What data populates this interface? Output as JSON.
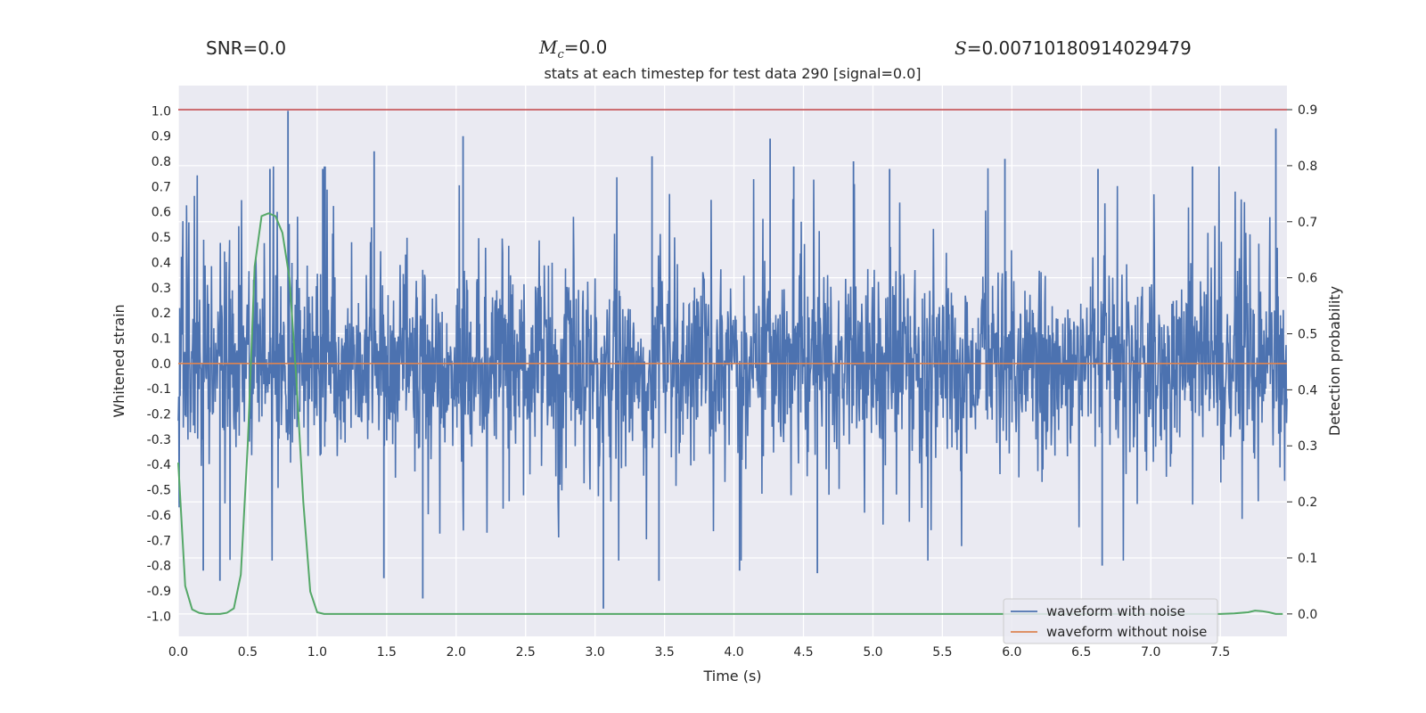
{
  "header": {
    "snr_label": "SNR=0.0",
    "mc_symbol": "M",
    "mc_sub": "c",
    "mc_value": "=0.0",
    "s_symbol": "S",
    "s_value": "=0.00710180914029479"
  },
  "chart_data": {
    "type": "line",
    "title": "stats at each timestep for test data 290 [signal=0.0]",
    "xlabel": "Time (s)",
    "ylabel": "Whitened strain",
    "y2label": "Detection probability",
    "xlim": [
      0.0,
      7.98
    ],
    "ylim": [
      -1.08,
      1.1
    ],
    "y2lim": [
      -0.04,
      0.943
    ],
    "x_ticks": [
      "0.0",
      "0.5",
      "1.0",
      "1.5",
      "2.0",
      "2.5",
      "3.0",
      "3.5",
      "4.0",
      "4.5",
      "5.0",
      "5.5",
      "6.0",
      "6.5",
      "7.0",
      "7.5"
    ],
    "y_ticks": [
      "-1.0",
      "-0.9",
      "-0.8",
      "-0.7",
      "-0.6",
      "-0.5",
      "-0.4",
      "-0.3",
      "-0.2",
      "-0.1",
      "0.0",
      "0.1",
      "0.2",
      "0.3",
      "0.4",
      "0.5",
      "0.6",
      "0.7",
      "0.8",
      "0.9",
      "1.0"
    ],
    "y2_ticks": [
      "0.0",
      "0.1",
      "0.2",
      "0.3",
      "0.4",
      "0.5",
      "0.6",
      "0.7",
      "0.8",
      "0.9"
    ],
    "threshold": {
      "axis": "right",
      "value": 0.9,
      "color": "#c44e52"
    },
    "noise_seed": 290,
    "noise_peaks": [
      {
        "x": 0.79,
        "y": 1.0
      },
      {
        "x": 0.66,
        "y": 0.77
      },
      {
        "x": 1.04,
        "y": 0.77
      },
      {
        "x": 1.41,
        "y": 0.84
      },
      {
        "x": 2.05,
        "y": 0.9
      },
      {
        "x": 3.41,
        "y": 0.82
      },
      {
        "x": 4.26,
        "y": 0.89
      },
      {
        "x": 4.43,
        "y": 0.78
      },
      {
        "x": 4.86,
        "y": 0.8
      },
      {
        "x": 5.12,
        "y": 0.77
      },
      {
        "x": 5.95,
        "y": 0.81
      },
      {
        "x": 6.62,
        "y": 0.77
      },
      {
        "x": 7.3,
        "y": 0.78
      },
      {
        "x": 7.9,
        "y": 0.93
      },
      {
        "x": 0.18,
        "y": -0.82
      },
      {
        "x": 0.3,
        "y": -0.86
      },
      {
        "x": 1.48,
        "y": -0.85
      },
      {
        "x": 1.76,
        "y": -0.93
      },
      {
        "x": 3.06,
        "y": -0.97
      },
      {
        "x": 3.46,
        "y": -0.86
      },
      {
        "x": 4.04,
        "y": -0.82
      },
      {
        "x": 4.6,
        "y": -0.83
      },
      {
        "x": 6.65,
        "y": -0.8
      }
    ],
    "series": [
      {
        "name": "waveform with noise",
        "axis": "left",
        "color": "#4c72b0",
        "description": "dense noisy strain, core within about +/-0.3, spikes to about +/-0.9"
      },
      {
        "name": "waveform without noise",
        "axis": "left",
        "color": "#dd8452",
        "x": [
          0.0,
          7.98
        ],
        "values": [
          0.0,
          0.0
        ]
      },
      {
        "name": "detection probability",
        "axis": "right",
        "color": "#55a868",
        "x": [
          0.0,
          0.05,
          0.1,
          0.15,
          0.2,
          0.25,
          0.3,
          0.35,
          0.4,
          0.45,
          0.5,
          0.55,
          0.6,
          0.65,
          0.7,
          0.75,
          0.8,
          0.85,
          0.9,
          0.95,
          1.0,
          1.05,
          1.1,
          1.2,
          1.5,
          2.0,
          3.0,
          4.0,
          5.0,
          6.0,
          7.0,
          7.4,
          7.5,
          7.6,
          7.7,
          7.75,
          7.8,
          7.85,
          7.9,
          7.95
        ],
        "values": [
          0.27,
          0.05,
          0.008,
          0.002,
          0.0,
          0.0,
          0.0,
          0.002,
          0.01,
          0.07,
          0.3,
          0.62,
          0.71,
          0.715,
          0.71,
          0.68,
          0.6,
          0.42,
          0.2,
          0.04,
          0.003,
          0.0,
          0.0,
          0.0,
          0.0,
          0.0,
          0.0,
          0.0,
          0.0,
          0.0,
          0.0,
          0.0,
          0.0,
          0.001,
          0.003,
          0.006,
          0.005,
          0.003,
          0.0,
          0.0
        ]
      }
    ],
    "legend": {
      "location": "lower-right",
      "entries": [
        {
          "label": "waveform with noise",
          "color": "#4c72b0"
        },
        {
          "label": "waveform without noise",
          "color": "#dd8452"
        }
      ]
    },
    "colors": {
      "axes_face": "#eaeaf2",
      "grid": "#ffffff"
    }
  }
}
